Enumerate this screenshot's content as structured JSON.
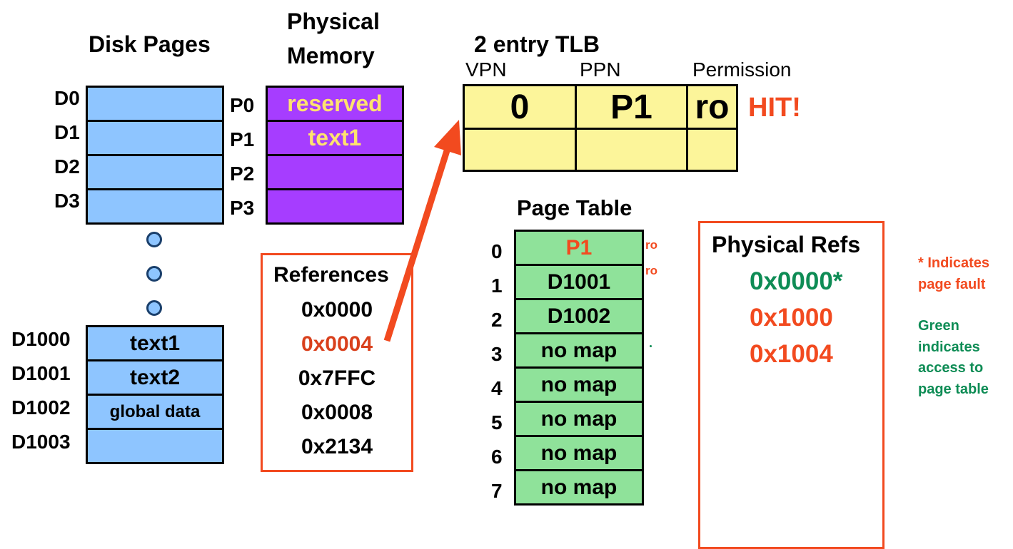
{
  "disk": {
    "title": "Disk Pages",
    "top_labels": [
      "D0",
      "D1",
      "D2",
      "D3"
    ],
    "bottom_labels": [
      "D1000",
      "D1001",
      "D1002",
      "D1003"
    ],
    "bottom_cells": [
      "text1",
      "text2",
      "global data",
      ""
    ]
  },
  "physical_memory": {
    "title_line1": "Physical",
    "title_line2": "Memory",
    "labels": [
      "P0",
      "P1",
      "P2",
      "P3"
    ],
    "cells": [
      "reserved",
      "text1",
      "",
      ""
    ]
  },
  "tlb": {
    "title": "2 entry TLB",
    "headers": [
      "VPN",
      "PPN",
      "Permission"
    ],
    "row0": [
      "0",
      "P1",
      "ro"
    ],
    "hit": "HIT!"
  },
  "references": {
    "title": "References",
    "items": [
      "0x0000",
      "0x0004",
      "0x7FFC",
      "0x0008",
      "0x2134"
    ],
    "highlight_color": "#d9401c"
  },
  "page_table": {
    "title": "Page Table",
    "indices": [
      "0",
      "1",
      "2",
      "3",
      "4",
      "5",
      "6",
      "7"
    ],
    "entries": [
      "P1",
      "D1001",
      "D1002",
      "no map",
      "no map",
      "no map",
      "no map",
      "no map"
    ],
    "perm_marks": [
      "ro",
      "ro"
    ]
  },
  "physical_refs": {
    "title": "Physical Refs",
    "items": [
      "0x0000*",
      "0x1000",
      "0x1004"
    ]
  },
  "legend": {
    "fault_lines": [
      "* Indicates",
      "page fault"
    ],
    "green_lines": [
      "Green",
      "indicates",
      "access to",
      "page table"
    ]
  },
  "colors": {
    "orange": "#f24a1f",
    "green": "#0e8c55",
    "disk_blue": "#8ec5ff",
    "memory_purple": "#a63dff",
    "tlb_yellow": "#fcf59a",
    "table_green": "#8fe29a"
  }
}
